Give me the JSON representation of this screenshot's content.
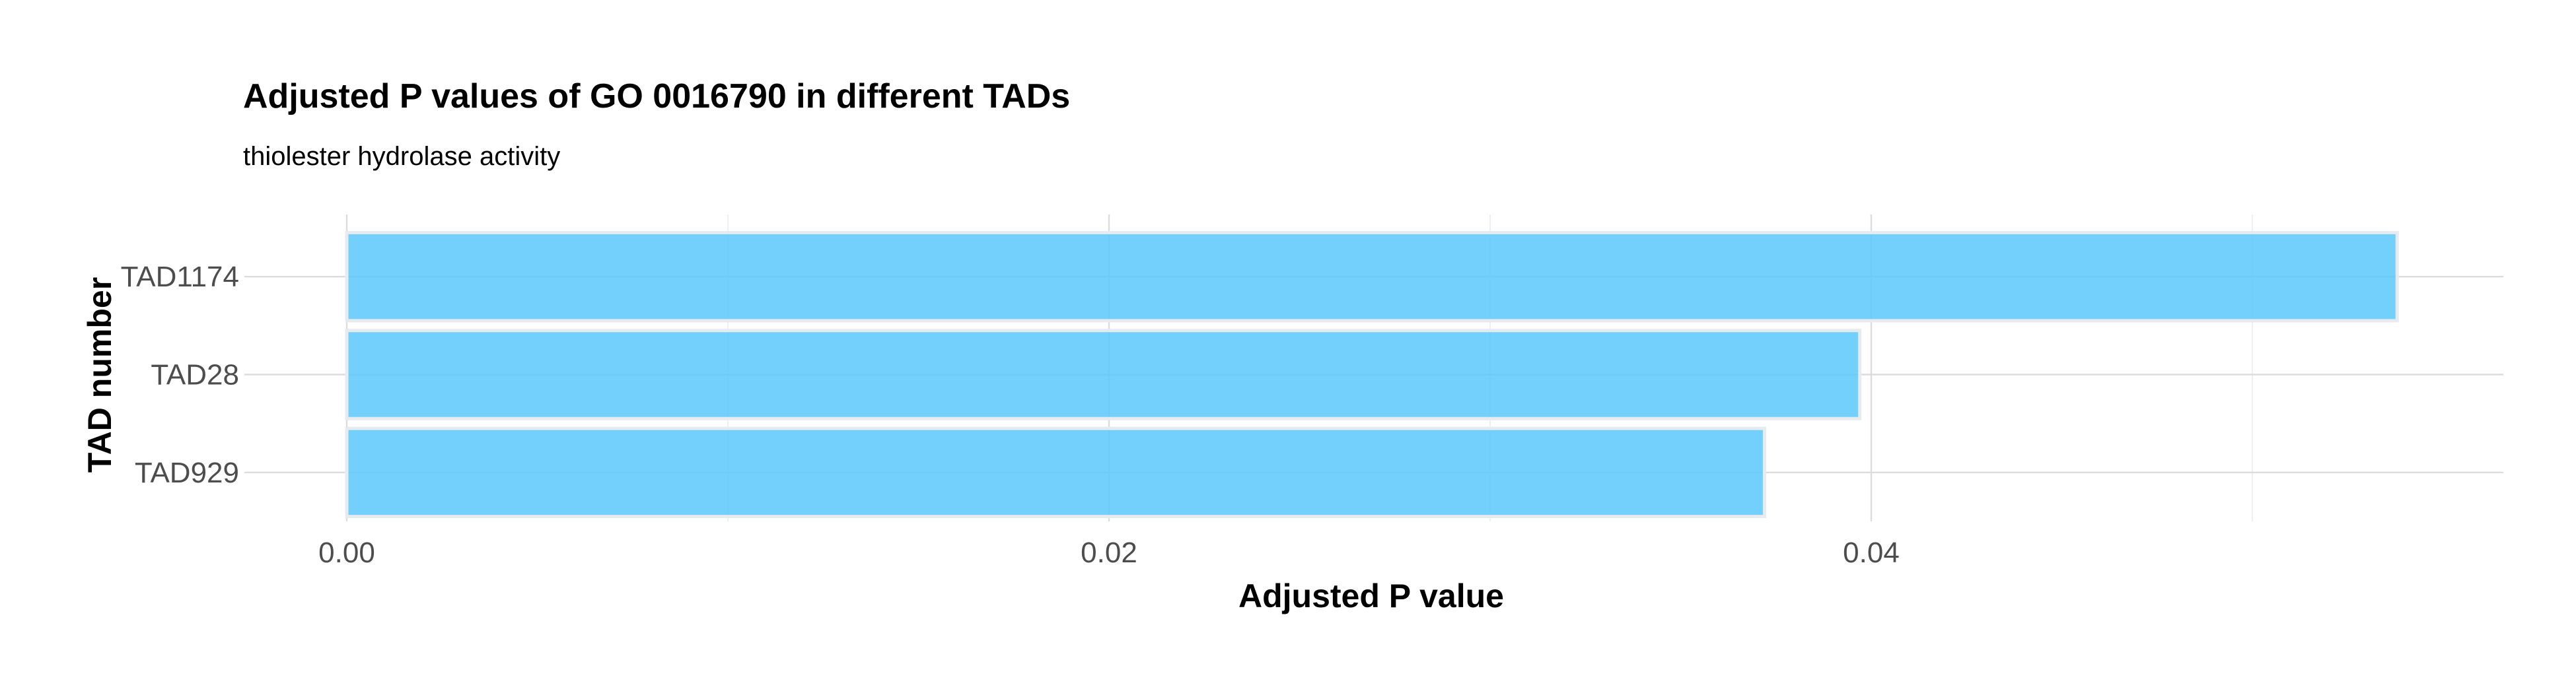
{
  "chart_data": {
    "type": "bar",
    "orientation": "horizontal",
    "title": "Adjusted P values of GO 0016790 in different TADs",
    "subtitle": "thiolester hydrolase activity",
    "xlabel": "Adjusted P value",
    "ylabel": "TAD number",
    "categories": [
      "TAD1174",
      "TAD28",
      "TAD929"
    ],
    "values": [
      0.0538,
      0.0397,
      0.0372
    ],
    "xlim": [
      0,
      0.0565
    ],
    "x_ticks": [
      0.0,
      0.02,
      0.04
    ],
    "x_tick_labels": [
      "0.00",
      "0.02",
      "0.04"
    ],
    "x_minor_ticks": [
      0.01,
      0.03,
      0.05
    ],
    "grid": true,
    "legend": "none",
    "colors": {
      "bar_fill": "#5bc8fb",
      "bar_outline": "#e6ebef",
      "grid_major": "#dcdcdc",
      "grid_minor": "#ebebeb",
      "background": "#ffffff"
    }
  }
}
